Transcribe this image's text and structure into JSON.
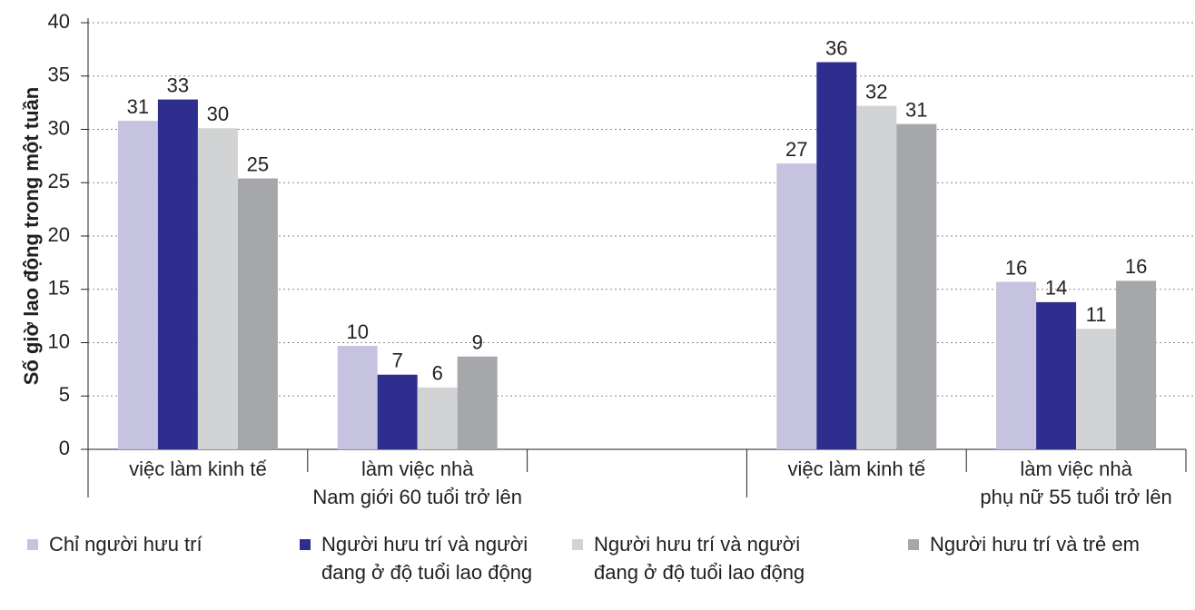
{
  "chart_data": {
    "type": "bar",
    "y_label": "Số giờ lao động trong một tuần",
    "categories": [
      "việc làm kinh tế",
      "làm việc nhà",
      null,
      "việc làm kinh tế",
      "làm việc nhà"
    ],
    "sublabels": [
      null,
      "Nam giới 60 tuổi trở lên",
      null,
      null,
      "phụ nữ 55 tuổi trở lên"
    ],
    "series": [
      {
        "name": "Chỉ người hưu trí",
        "color": "#c5c3e0",
        "values": [
          30.8,
          9.7,
          null,
          26.8,
          15.7
        ],
        "value_labels": [
          "31",
          "10",
          null,
          "27",
          "16"
        ]
      },
      {
        "name": "Người hưu trí và người đang ở độ tuổi lao động",
        "color": "#2e2e8e",
        "values": [
          32.8,
          7.0,
          null,
          36.3,
          13.8
        ],
        "value_labels": [
          "33",
          "7",
          null,
          "36",
          "14"
        ]
      },
      {
        "name": "Người hưu trí và người đang ở độ tuổi lao động",
        "color": "#d2d3d5",
        "values": [
          30.1,
          5.8,
          null,
          32.2,
          11.3
        ],
        "value_labels": [
          "30",
          "6",
          null,
          "32",
          "11"
        ]
      },
      {
        "name": "Người hưu trí và trẻ em",
        "color": "#a6a7ab",
        "values": [
          25.4,
          8.7,
          null,
          30.5,
          15.8
        ],
        "value_labels": [
          "25",
          "9",
          null,
          "31",
          "16"
        ]
      }
    ],
    "ylim": [
      0,
      40
    ],
    "yticks": [
      0,
      5,
      10,
      15,
      20,
      25,
      30,
      35,
      40
    ],
    "grid": true,
    "legend": "bottom"
  }
}
